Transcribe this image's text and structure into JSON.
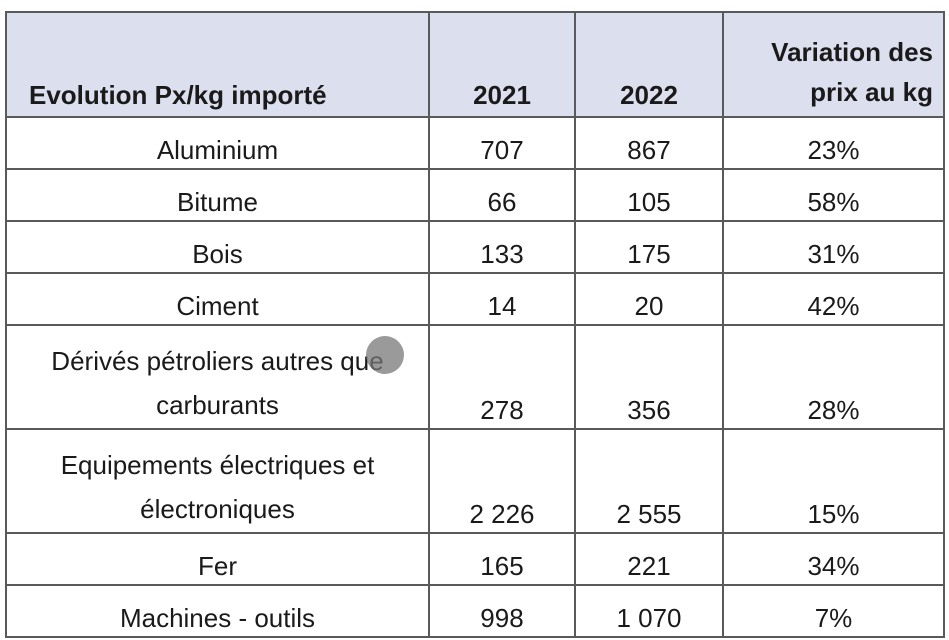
{
  "table": {
    "headers": {
      "label": "Evolution Px/kg importé",
      "year1": "2021",
      "year2": "2022",
      "variation": "Variation des prix au kg"
    },
    "rows": [
      {
        "name": "Aluminium",
        "y2021": "707",
        "y2022": "867",
        "variation": "23%"
      },
      {
        "name": "Bitume",
        "y2021": "66",
        "y2022": "105",
        "variation": "58%"
      },
      {
        "name": "Bois",
        "y2021": "133",
        "y2022": "175",
        "variation": "31%"
      },
      {
        "name": "Ciment",
        "y2021": "14",
        "y2022": "20",
        "variation": "42%"
      },
      {
        "name": "Dérivés pétroliers autres que carburants",
        "y2021": "278",
        "y2022": "356",
        "variation": "28%"
      },
      {
        "name": "Equipements électriques et électroniques",
        "y2021": "2 226",
        "y2022": "2 555",
        "variation": "15%"
      },
      {
        "name": "Fer",
        "y2021": "165",
        "y2022": "221",
        "variation": "34%"
      },
      {
        "name": "Machines - outils",
        "y2021": "998",
        "y2022": "1 070",
        "variation": "7%"
      }
    ]
  }
}
